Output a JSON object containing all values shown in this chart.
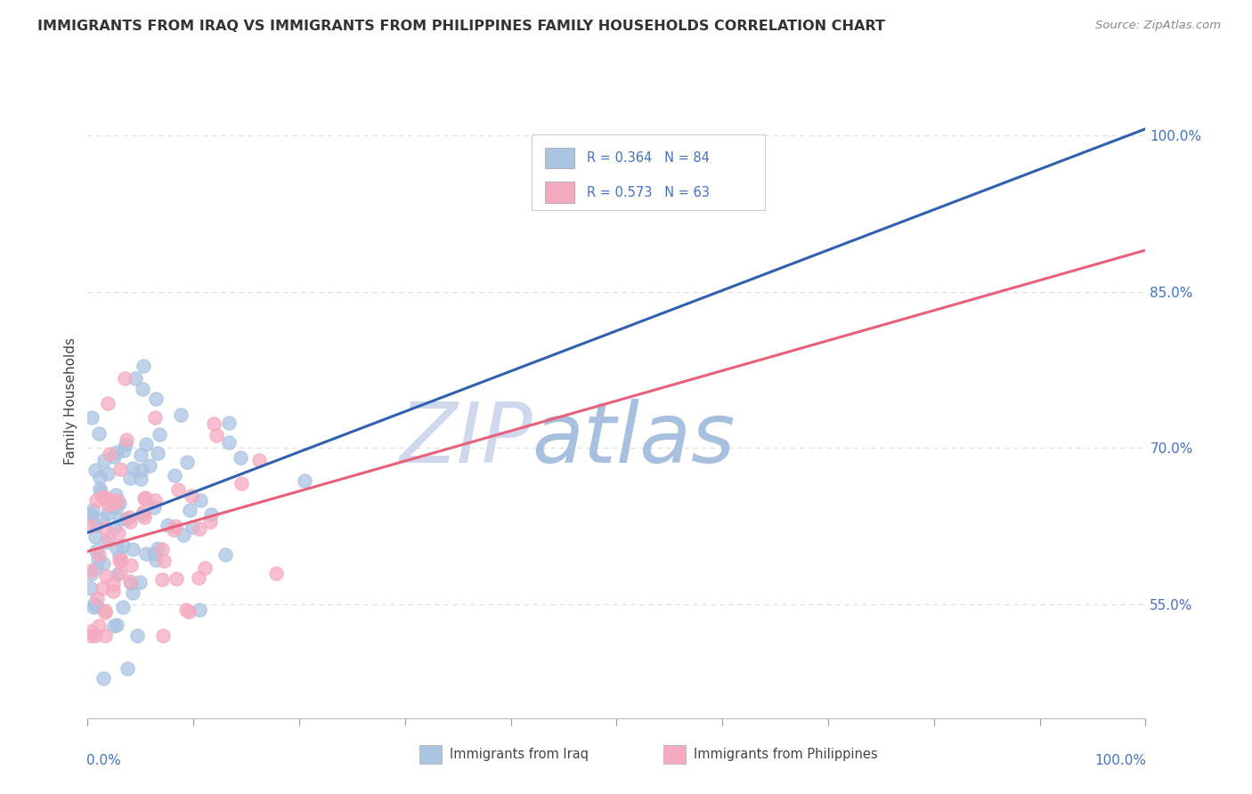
{
  "title": "IMMIGRANTS FROM IRAQ VS IMMIGRANTS FROM PHILIPPINES FAMILY HOUSEHOLDS CORRELATION CHART",
  "source": "Source: ZipAtlas.com",
  "ylabel": "Family Households",
  "y_ticks": [
    0.55,
    0.7,
    0.85,
    1.0
  ],
  "y_tick_labels": [
    "55.0%",
    "70.0%",
    "85.0%",
    "100.0%"
  ],
  "xlim": [
    0.0,
    1.0
  ],
  "ylim": [
    0.44,
    1.05
  ],
  "r_iraq": 0.364,
  "n_iraq": 84,
  "r_philippines": 0.573,
  "n_philippines": 63,
  "iraq_color": "#aac4e2",
  "philippines_color": "#f5aabf",
  "iraq_line_color": "#3060b0",
  "philippines_line_color": "#e8607a",
  "title_color": "#333333",
  "axis_label_color": "#4472c4",
  "watermark_color_zip": "#c5cfe8",
  "watermark_color_atlas": "#a8c4e8",
  "background_color": "#ffffff",
  "legend_text_color": "#4472c4",
  "legend_box_color": "#cccccc",
  "grid_color": "#dddddd",
  "source_color": "#888888",
  "bottom_label_color": "#444444",
  "iraq_line_intercept": 0.62,
  "iraq_line_slope": 0.25,
  "phil_line_intercept": 0.6,
  "phil_line_slope": 0.4
}
